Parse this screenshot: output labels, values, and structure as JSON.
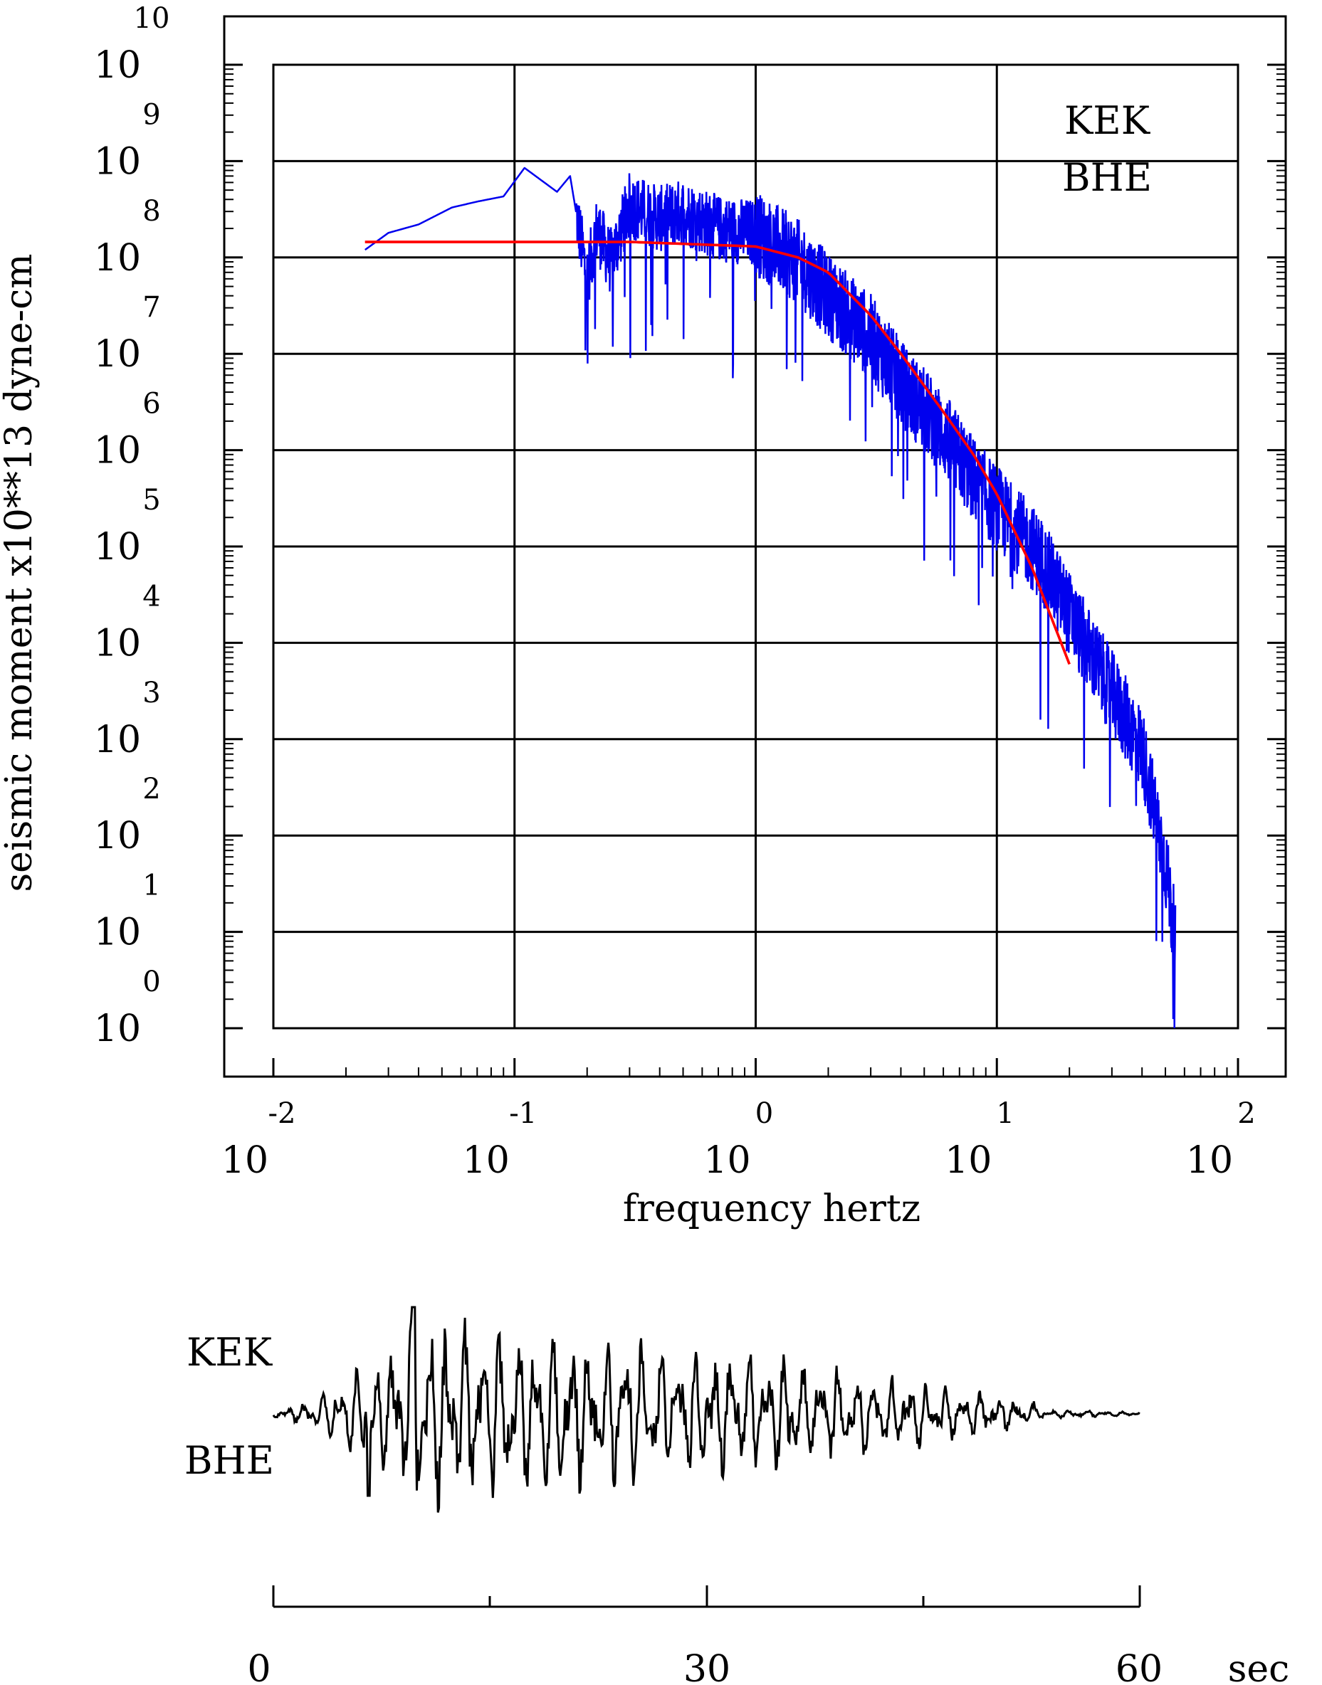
{
  "chart_data": [
    {
      "type": "line",
      "xlabel": "frequency hertz",
      "ylabel": "seismic moment x10**13 dyne-cm",
      "xscale": "log",
      "yscale": "log",
      "xlim": [
        0.01,
        100
      ],
      "ylim": [
        1,
        10000000000
      ],
      "x_ticks": [
        {
          "base": "10",
          "exp": "-2"
        },
        {
          "base": "10",
          "exp": "-1"
        },
        {
          "base": "10",
          "exp": "0"
        },
        {
          "base": "10",
          "exp": "1"
        },
        {
          "base": "10",
          "exp": "2"
        }
      ],
      "y_ticks": [
        {
          "base": "10",
          "exp": "0"
        },
        {
          "base": "10",
          "exp": "1"
        },
        {
          "base": "10",
          "exp": "2"
        },
        {
          "base": "10",
          "exp": "3"
        },
        {
          "base": "10",
          "exp": "4"
        },
        {
          "base": "10",
          "exp": "5"
        },
        {
          "base": "10",
          "exp": "6"
        },
        {
          "base": "10",
          "exp": "7"
        },
        {
          "base": "10",
          "exp": "8"
        },
        {
          "base": "10",
          "exp": "9"
        },
        {
          "base": "10",
          "exp": "10"
        }
      ],
      "grid": true,
      "labels": [
        "KEK",
        "BHE"
      ],
      "series": [
        {
          "color": "#0000ee",
          "style": "noisy spectrum",
          "x": [
            0.024,
            0.03,
            0.04,
            0.055,
            0.07,
            0.09,
            0.11,
            0.15,
            0.17,
            0.2,
            0.22,
            0.25,
            0.3,
            0.4,
            0.5,
            0.7,
            1.0,
            1.5,
            2.0,
            3.0,
            4.0,
            6.0,
            8.0,
            10.0,
            15.0,
            20.0,
            30.0,
            40.0,
            50.0,
            55.0
          ],
          "y": [
            120000000,
            180000000,
            220000000,
            330000000,
            380000000,
            430000000,
            850000000,
            480000000,
            700000000,
            60000000,
            200000000,
            90000000,
            350000000,
            250000000,
            300000000,
            200000000,
            180000000,
            90000000,
            40000000,
            15000000,
            5000000,
            1500000,
            500000,
            250000,
            80000,
            20000,
            3000,
            800,
            50,
            8
          ]
        },
        {
          "color": "#ff0000",
          "style": "model fit",
          "x": [
            0.024,
            0.05,
            0.1,
            0.3,
            1.0,
            1.5,
            2.0,
            3.0,
            4.0,
            6.0,
            8.0,
            10.0,
            14.0,
            20.0
          ],
          "y": [
            145000000,
            145000000,
            145000000,
            145000000,
            130000000,
            100000000,
            70000000,
            25000000,
            10000000,
            2500000,
            900000,
            350000,
            60000,
            6000
          ]
        }
      ]
    },
    {
      "type": "line",
      "xlim": [
        0,
        60
      ],
      "x_ticks": [
        "0",
        "30",
        "60"
      ],
      "xunit": "sec",
      "labels": [
        "KEK",
        "BHE"
      ],
      "series": [
        {
          "color": "#000000",
          "style": "seismogram trace"
        }
      ]
    }
  ]
}
